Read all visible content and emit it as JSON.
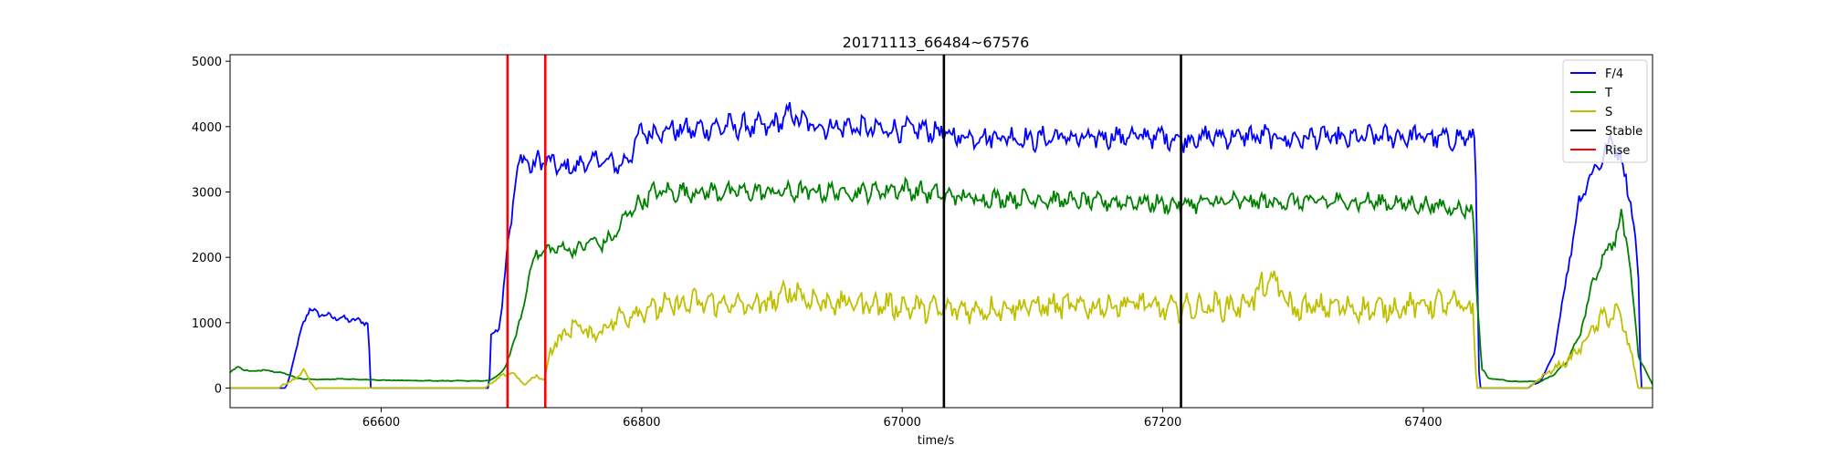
{
  "chart_data": {
    "type": "line",
    "title": "20171113_66484~67576",
    "xlabel": "time/s",
    "ylabel": "",
    "xlim": [
      66484,
      67576
    ],
    "ylim": [
      -300,
      5100
    ],
    "xticks": [
      66600,
      66800,
      67000,
      67200,
      67400
    ],
    "yticks": [
      0,
      1000,
      2000,
      3000,
      4000,
      5000
    ],
    "grid": false,
    "legend_position": "top-right",
    "series": [
      {
        "name": "F/4",
        "color": "#0000ff",
        "points": [
          [
            66484,
            0
          ],
          [
            66527,
            0
          ],
          [
            66530,
            200
          ],
          [
            66535,
            600
          ],
          [
            66540,
            1000
          ],
          [
            66545,
            1200
          ],
          [
            66555,
            1120
          ],
          [
            66565,
            1080
          ],
          [
            66575,
            1050
          ],
          [
            66585,
            1020
          ],
          [
            66590,
            1000
          ],
          [
            66592,
            0
          ],
          [
            66600,
            0
          ],
          [
            66650,
            0
          ],
          [
            66683,
            0
          ],
          [
            66684,
            800
          ],
          [
            66690,
            900
          ],
          [
            66693,
            1300
          ],
          [
            66697,
            2200
          ],
          [
            66700,
            2600
          ],
          [
            66703,
            3200
          ],
          [
            66707,
            3450
          ],
          [
            66712,
            3550
          ],
          [
            66716,
            3300
          ],
          [
            66720,
            3500
          ],
          [
            66730,
            3450
          ],
          [
            66740,
            3350
          ],
          [
            66750,
            3400
          ],
          [
            66760,
            3450
          ],
          [
            66770,
            3500
          ],
          [
            66780,
            3400
          ],
          [
            66790,
            3500
          ],
          [
            66796,
            3800
          ],
          [
            66800,
            3900
          ],
          [
            66820,
            3950
          ],
          [
            66840,
            3950
          ],
          [
            66860,
            4000
          ],
          [
            66880,
            4000
          ],
          [
            66900,
            4000
          ],
          [
            66915,
            4200
          ],
          [
            66925,
            4050
          ],
          [
            66940,
            4000
          ],
          [
            66960,
            4000
          ],
          [
            66980,
            3950
          ],
          [
            67000,
            3950
          ],
          [
            67020,
            3950
          ],
          [
            67040,
            3850
          ],
          [
            67060,
            3850
          ],
          [
            67080,
            3850
          ],
          [
            67100,
            3800
          ],
          [
            67120,
            3850
          ],
          [
            67140,
            3800
          ],
          [
            67160,
            3850
          ],
          [
            67180,
            3850
          ],
          [
            67200,
            3850
          ],
          [
            67215,
            3800
          ],
          [
            67240,
            3850
          ],
          [
            67260,
            3850
          ],
          [
            67280,
            3850
          ],
          [
            67300,
            3800
          ],
          [
            67320,
            3850
          ],
          [
            67340,
            3800
          ],
          [
            67360,
            3850
          ],
          [
            67380,
            3850
          ],
          [
            67400,
            3850
          ],
          [
            67420,
            3800
          ],
          [
            67438,
            3850
          ],
          [
            67440,
            3700
          ],
          [
            67443,
            0
          ],
          [
            67460,
            0
          ],
          [
            67480,
            0
          ],
          [
            67490,
            100
          ],
          [
            67500,
            500
          ],
          [
            67510,
            1700
          ],
          [
            67520,
            2900
          ],
          [
            67530,
            3300
          ],
          [
            67540,
            3600
          ],
          [
            67545,
            3800
          ],
          [
            67552,
            3500
          ],
          [
            67560,
            2800
          ],
          [
            67565,
            1800
          ],
          [
            67567,
            0
          ],
          [
            67576,
            0
          ]
        ]
      },
      {
        "name": "T",
        "color": "#008000",
        "points": [
          [
            66484,
            250
          ],
          [
            66490,
            320
          ],
          [
            66500,
            250
          ],
          [
            66510,
            280
          ],
          [
            66520,
            250
          ],
          [
            66530,
            200
          ],
          [
            66535,
            150
          ],
          [
            66550,
            130
          ],
          [
            66570,
            140
          ],
          [
            66600,
            120
          ],
          [
            66650,
            110
          ],
          [
            66683,
            110
          ],
          [
            66690,
            200
          ],
          [
            66695,
            300
          ],
          [
            66700,
            600
          ],
          [
            66705,
            900
          ],
          [
            66710,
            1300
          ],
          [
            66713,
            1700
          ],
          [
            66717,
            2000
          ],
          [
            66725,
            2100
          ],
          [
            66740,
            2150
          ],
          [
            66750,
            2100
          ],
          [
            66760,
            2250
          ],
          [
            66770,
            2200
          ],
          [
            66780,
            2350
          ],
          [
            66790,
            2700
          ],
          [
            66800,
            2850
          ],
          [
            66810,
            3000
          ],
          [
            66830,
            3000
          ],
          [
            66860,
            3000
          ],
          [
            66900,
            3000
          ],
          [
            66940,
            3000
          ],
          [
            66970,
            3000
          ],
          [
            67000,
            3050
          ],
          [
            67030,
            2950
          ],
          [
            67060,
            2900
          ],
          [
            67100,
            2900
          ],
          [
            67140,
            2850
          ],
          [
            67180,
            2850
          ],
          [
            67210,
            2800
          ],
          [
            67240,
            2850
          ],
          [
            67280,
            2850
          ],
          [
            67320,
            2850
          ],
          [
            67360,
            2850
          ],
          [
            67400,
            2800
          ],
          [
            67430,
            2750
          ],
          [
            67438,
            2700
          ],
          [
            67441,
            1500
          ],
          [
            67445,
            300
          ],
          [
            67450,
            150
          ],
          [
            67470,
            100
          ],
          [
            67490,
            100
          ],
          [
            67500,
            200
          ],
          [
            67510,
            400
          ],
          [
            67520,
            800
          ],
          [
            67530,
            1600
          ],
          [
            67540,
            2100
          ],
          [
            67548,
            2300
          ],
          [
            67552,
            2600
          ],
          [
            67557,
            2200
          ],
          [
            67562,
            1200
          ],
          [
            67565,
            500
          ],
          [
            67570,
            300
          ],
          [
            67576,
            50
          ]
        ]
      },
      {
        "name": "S",
        "color": "#bfbf00",
        "points": [
          [
            66484,
            0
          ],
          [
            66520,
            0
          ],
          [
            66535,
            150
          ],
          [
            66540,
            300
          ],
          [
            66545,
            100
          ],
          [
            66550,
            0
          ],
          [
            66600,
            0
          ],
          [
            66680,
            0
          ],
          [
            66690,
            150
          ],
          [
            66700,
            250
          ],
          [
            66705,
            150
          ],
          [
            66710,
            50
          ],
          [
            66720,
            200
          ],
          [
            66725,
            100
          ],
          [
            66730,
            600
          ],
          [
            66740,
            800
          ],
          [
            66750,
            1000
          ],
          [
            66760,
            800
          ],
          [
            66770,
            900
          ],
          [
            66780,
            1050
          ],
          [
            66800,
            1200
          ],
          [
            66820,
            1250
          ],
          [
            66840,
            1300
          ],
          [
            66860,
            1300
          ],
          [
            66880,
            1250
          ],
          [
            66900,
            1300
          ],
          [
            66915,
            1500
          ],
          [
            66930,
            1350
          ],
          [
            66950,
            1300
          ],
          [
            66970,
            1300
          ],
          [
            67000,
            1250
          ],
          [
            67030,
            1200
          ],
          [
            67060,
            1200
          ],
          [
            67090,
            1250
          ],
          [
            67120,
            1250
          ],
          [
            67150,
            1250
          ],
          [
            67180,
            1300
          ],
          [
            67200,
            1200
          ],
          [
            67230,
            1250
          ],
          [
            67260,
            1250
          ],
          [
            67285,
            1650
          ],
          [
            67300,
            1200
          ],
          [
            67330,
            1250
          ],
          [
            67360,
            1200
          ],
          [
            67390,
            1250
          ],
          [
            67410,
            1300
          ],
          [
            67430,
            1250
          ],
          [
            67438,
            1200
          ],
          [
            67441,
            0
          ],
          [
            67480,
            0
          ],
          [
            67500,
            300
          ],
          [
            67510,
            400
          ],
          [
            67520,
            600
          ],
          [
            67530,
            900
          ],
          [
            67540,
            1100
          ],
          [
            67548,
            1150
          ],
          [
            67555,
            900
          ],
          [
            67562,
            300
          ],
          [
            67565,
            0
          ],
          [
            67576,
            0
          ]
        ]
      }
    ],
    "vlines": [
      {
        "name": "Rise",
        "color": "#ff0000",
        "x": [
          66697,
          66726
        ]
      },
      {
        "name": "Stable",
        "color": "#000000",
        "x": [
          67032,
          67214
        ]
      }
    ],
    "legend": [
      {
        "label": "F/4",
        "color": "#0000ff"
      },
      {
        "label": "T",
        "color": "#008000"
      },
      {
        "label": "S",
        "color": "#bfbf00"
      },
      {
        "label": "Stable",
        "color": "#000000"
      },
      {
        "label": "Rise",
        "color": "#ff0000"
      }
    ]
  }
}
